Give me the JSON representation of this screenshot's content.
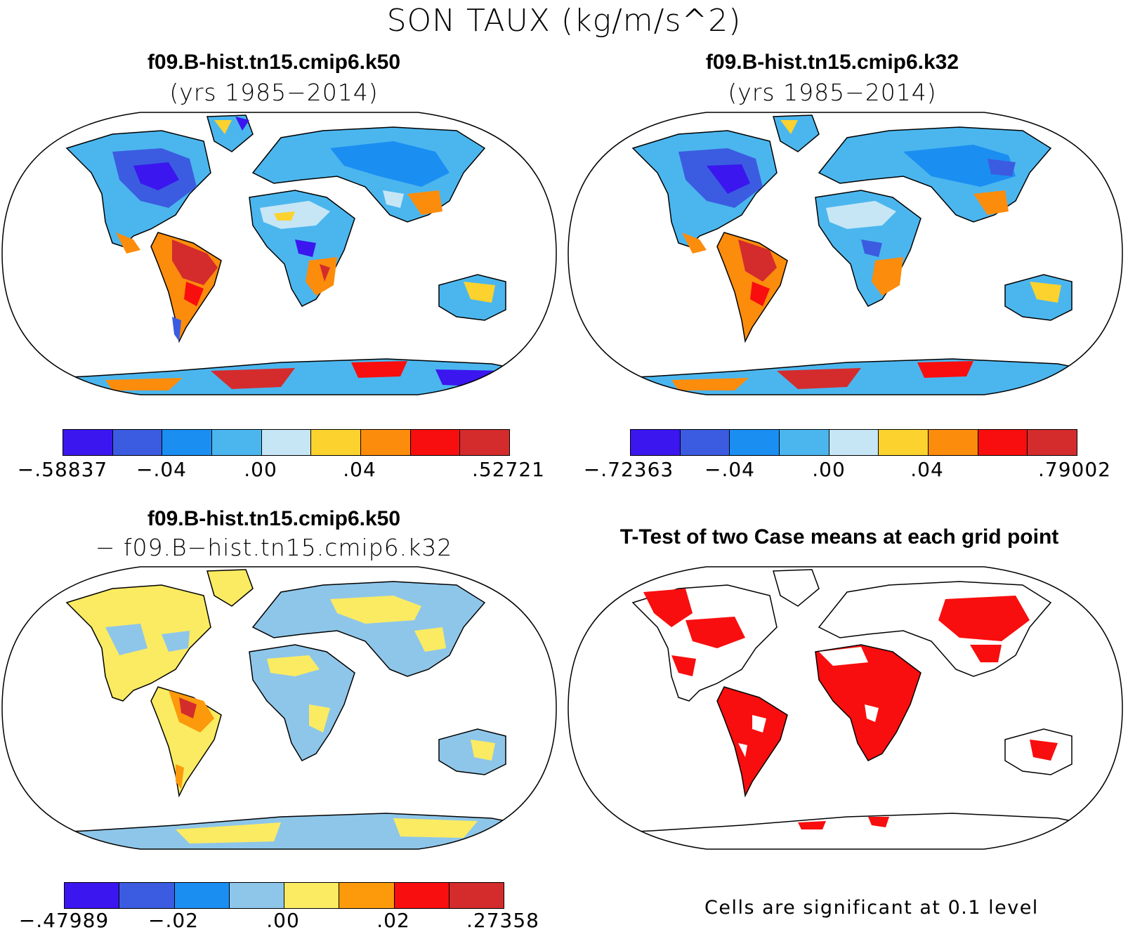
{
  "title": "SON TAUX (kg/m/s^2)",
  "panels": [
    {
      "title": "f09.B-hist.tn15.cmip6.k50",
      "subtitle": "(yrs 1985−2014)",
      "colors": [
        "#3b16ef",
        "#3b5ce0",
        "#1b8ef2",
        "#4bb6ee",
        "#c6e6f6",
        "#fcd22e",
        "#fc8c0c",
        "#f80e0e",
        "#d42c2c"
      ],
      "labels": [
        "−.58837",
        "−.04",
        ".00",
        ".04",
        ".52721"
      ]
    },
    {
      "title": "f09.B-hist.tn15.cmip6.k32",
      "subtitle": "(yrs 1985−2014)",
      "colors": [
        "#3b16ef",
        "#3b5ce0",
        "#1b8ef2",
        "#4bb6ee",
        "#c6e6f6",
        "#fcd22e",
        "#fc8c0c",
        "#f80e0e",
        "#d42c2c"
      ],
      "labels": [
        "−.72363",
        "−.04",
        ".00",
        ".04",
        ".79002"
      ]
    },
    {
      "title": "f09.B-hist.tn15.cmip6.k50",
      "subtitle": "− f09.B−hist.tn15.cmip6.k32",
      "colors": [
        "#3b16ef",
        "#3b5ce0",
        "#1b8ef2",
        "#8ec6ea",
        "#fbeb62",
        "#fc9a0c",
        "#f80e0e",
        "#d42c2c"
      ],
      "labels": [
        "−.47989",
        "−.02",
        ".00",
        ".02",
        ".27358"
      ]
    },
    {
      "title": "T-Test of two Case means at each grid point",
      "note": "Cells are significant at 0.1 level"
    }
  ]
}
